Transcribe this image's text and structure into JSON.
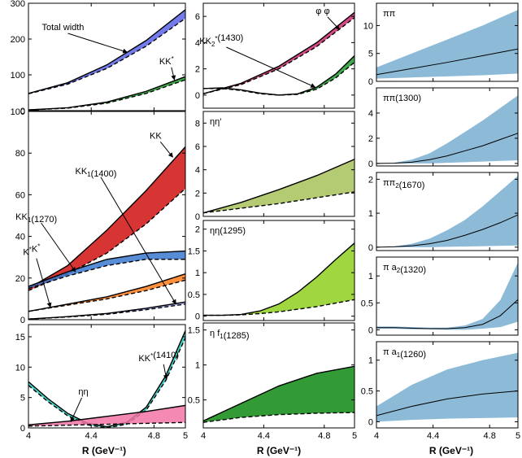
{
  "x_axis": {
    "label": "R (GeV⁻¹)",
    "ticks": [
      4,
      4.4,
      4.8,
      5
    ],
    "tick_labels": [
      "4",
      "4.4",
      "4.8",
      "5"
    ],
    "range": [
      4,
      5
    ]
  },
  "chart_data": [
    {
      "type": "area",
      "column": 1,
      "row": 1,
      "xlim": [
        4,
        5
      ],
      "ylim": [
        0,
        300
      ],
      "yticks": [
        0,
        100,
        200,
        300
      ],
      "series": [
        {
          "name": "Total width",
          "color": "#5a63e6",
          "fill_from": "lower",
          "x": [
            4,
            4.25,
            4.5,
            4.75,
            5
          ],
          "upper": [
            48,
            78,
            128,
            196,
            282
          ],
          "lower": [
            47,
            74,
            118,
            180,
            258
          ]
        },
        {
          "name": "KK*",
          "color": "#1f9a2c",
          "fill_from": "lower",
          "x": [
            4,
            4.25,
            4.5,
            4.75,
            5
          ],
          "upper": [
            2,
            8,
            24,
            54,
            95
          ],
          "lower": [
            2,
            7,
            21,
            48,
            86
          ]
        }
      ],
      "annotations": [
        {
          "text": "Total width",
          "series": 0,
          "label_at": [
            4.22,
            225
          ],
          "arrow_to": [
            4.63,
            163
          ]
        },
        {
          "text": "KK*",
          "series": 1,
          "label_at": [
            4.88,
            130
          ],
          "arrow_to": [
            4.93,
            86
          ]
        }
      ]
    },
    {
      "type": "area",
      "column": 1,
      "row": 2,
      "xlim": [
        4,
        5
      ],
      "ylim": [
        0,
        100
      ],
      "yticks": [
        0,
        20,
        40,
        60,
        80,
        100
      ],
      "series": [
        {
          "name": "KK",
          "color": "#d01010",
          "fill_from": "lower",
          "x": [
            4,
            4.25,
            4.5,
            4.75,
            5
          ],
          "upper": [
            15,
            26,
            43,
            62,
            83
          ],
          "lower": [
            14,
            22,
            32,
            46,
            63
          ]
        },
        {
          "name": "KK1(1270)",
          "color": "#3a78d0",
          "fill_from": "lower",
          "x": [
            4,
            4.25,
            4.5,
            4.75,
            5
          ],
          "upper": [
            16,
            23,
            29,
            32,
            33
          ],
          "lower": [
            15,
            21,
            26,
            29,
            29
          ]
        },
        {
          "name": "K*K*",
          "color": "#ff7d1a",
          "fill_from": "lower",
          "x": [
            4,
            4.25,
            4.5,
            4.75,
            5
          ],
          "upper": [
            4,
            7.5,
            11,
            16,
            22
          ],
          "lower": [
            4,
            7,
            10,
            14,
            19
          ]
        },
        {
          "name": "KK1(1400)",
          "color": "#9aa5ee",
          "fill_from": "lower",
          "x": [
            4,
            4.25,
            4.5,
            4.75,
            5
          ],
          "upper": [
            0.3,
            1.5,
            3,
            5.5,
            8.5
          ],
          "lower": [
            0.3,
            1.3,
            2.6,
            4.8,
            7.5
          ]
        }
      ],
      "annotations": [
        {
          "text": "KK",
          "series": 0,
          "label_at": [
            4.81,
            87
          ],
          "arrow_to": [
            4.92,
            78
          ]
        },
        {
          "text": "KK1(1400)",
          "series": 3,
          "label_at": [
            4.43,
            70
          ],
          "arrow_to": [
            4.94,
            7.5
          ]
        },
        {
          "text": "KK1(1270)",
          "series": 1,
          "label_at": [
            4.05,
            48
          ],
          "arrow_to": [
            4.3,
            23
          ]
        },
        {
          "text": "K*K*",
          "series": 2,
          "label_at": [
            4.02,
            31
          ],
          "arrow_to": [
            4.14,
            6
          ]
        }
      ]
    },
    {
      "type": "area",
      "column": 1,
      "row": 3,
      "xlim": [
        4,
        5
      ],
      "ylim": [
        0,
        17
      ],
      "yticks": [
        0,
        5,
        10,
        15
      ],
      "series": [
        {
          "name": "KK*(1410)",
          "color": "#22c8bb",
          "fill_from": "lower",
          "x": [
            4,
            4.125,
            4.25,
            4.375,
            4.5,
            4.625,
            4.75,
            4.875,
            5
          ],
          "upper": [
            7.6,
            4.8,
            2.4,
            0.8,
            0.2,
            0.9,
            3.4,
            8.6,
            16.0
          ],
          "lower": [
            7.0,
            4.3,
            2.0,
            0.5,
            0.0,
            0.6,
            2.9,
            7.8,
            14.8
          ]
        },
        {
          "name": "ηη",
          "color": "#f276a6",
          "fill_from": "lower",
          "x": [
            4,
            4.25,
            4.5,
            4.75,
            5
          ],
          "upper": [
            0.5,
            1.1,
            1.9,
            2.7,
            3.7
          ],
          "lower": [
            0.3,
            0.45,
            0.6,
            0.75,
            0.9
          ]
        }
      ],
      "annotations": [
        {
          "text": "KK*(1410)",
          "series": 0,
          "label_at": [
            4.83,
            11
          ],
          "arrow_to": [
            4.88,
            8.0
          ]
        },
        {
          "text": "ηη",
          "series": 1,
          "label_at": [
            4.35,
            5.5
          ],
          "arrow_to": [
            4.27,
            1.0
          ]
        }
      ]
    },
    {
      "type": "area",
      "column": 2,
      "row": 1,
      "xlim": [
        4,
        5
      ],
      "ylim": [
        -1,
        7
      ],
      "yticks": [
        0,
        2,
        4,
        6
      ],
      "series": [
        {
          "name": "φ φ",
          "color": "#cc2a6e",
          "fill_from": "lower",
          "x": [
            4,
            4.25,
            4.5,
            4.75,
            5
          ],
          "upper": [
            0.1,
            0.9,
            2.2,
            4.0,
            6.3
          ],
          "lower": [
            0.1,
            0.8,
            2.0,
            3.7,
            5.9
          ]
        },
        {
          "name": "KK2*(1430)",
          "color": "#1f9a2c",
          "fill_from": "lower",
          "x": [
            4,
            4.125,
            4.25,
            4.375,
            4.5,
            4.625,
            4.75,
            4.875,
            5
          ],
          "upper": [
            0.5,
            0.55,
            0.4,
            0.15,
            0.0,
            0.1,
            0.6,
            1.6,
            3.0
          ],
          "lower": [
            0.5,
            0.5,
            0.35,
            0.1,
            0.0,
            0.05,
            0.45,
            1.3,
            2.5
          ]
        }
      ],
      "annotations": [
        {
          "text": "φ φ",
          "series": 0,
          "label_at": [
            4.79,
            6.2
          ],
          "arrow_to": [
            4.9,
            5.0
          ]
        },
        {
          "text": "KK2*(1430)",
          "series": 1,
          "label_at": [
            4.12,
            3.9
          ],
          "arrow_to": [
            4.74,
            0.6
          ]
        }
      ]
    },
    {
      "type": "area",
      "column": 2,
      "row": 2,
      "xlim": [
        4,
        5
      ],
      "ylim": [
        0,
        9
      ],
      "yticks": [
        0,
        2,
        4,
        6,
        8
      ],
      "series": [
        {
          "name": "ηη′",
          "color": "#a8c25a",
          "fill_from": "lower",
          "x": [
            4,
            4.25,
            4.5,
            4.75,
            5
          ],
          "upper": [
            0.3,
            1.2,
            2.3,
            3.5,
            4.9
          ],
          "lower": [
            0.3,
            0.7,
            1.1,
            1.6,
            2.1
          ]
        }
      ]
    },
    {
      "type": "area",
      "column": 2,
      "row": 3,
      "xlim": [
        4,
        5
      ],
      "ylim": [
        -0.1,
        2.2
      ],
      "yticks": [
        0,
        0.5,
        1,
        1.5,
        2
      ],
      "series": [
        {
          "name": "ηη(1295)",
          "color": "#8fd01f",
          "fill_from": "lower",
          "x": [
            4,
            4.125,
            4.25,
            4.375,
            4.5,
            4.625,
            4.75,
            4.875,
            5
          ],
          "upper": [
            0.02,
            0.02,
            0.04,
            0.12,
            0.28,
            0.55,
            0.9,
            1.3,
            1.68
          ],
          "lower": [
            0.02,
            0.02,
            0.03,
            0.06,
            0.1,
            0.16,
            0.22,
            0.3,
            0.38
          ]
        }
      ]
    },
    {
      "type": "area",
      "column": 2,
      "row": 4,
      "xlim": [
        4,
        5
      ],
      "ylim": [
        0.1,
        1.6
      ],
      "yticks": [
        0.5,
        1,
        1.5
      ],
      "series": [
        {
          "name": "η f1(1285)",
          "color": "#0f8a12",
          "fill_from": "lower",
          "x": [
            4,
            4.25,
            4.5,
            4.75,
            5
          ],
          "upper": [
            0.2,
            0.45,
            0.7,
            0.88,
            0.98
          ],
          "lower": [
            0.18,
            0.25,
            0.29,
            0.31,
            0.32
          ]
        }
      ]
    },
    {
      "type": "area",
      "column": 3,
      "row": 1,
      "xlim": [
        4,
        5
      ],
      "ylim": [
        0,
        14
      ],
      "yticks": [
        0,
        5,
        10
      ],
      "series": [
        {
          "name": "ππ",
          "color": "#7fb3d3",
          "central_line": true,
          "x": [
            4,
            4.25,
            4.5,
            4.75,
            5
          ],
          "upper": [
            2.5,
            5,
            7.5,
            10,
            12.8
          ],
          "lower": [
            0.5,
            0.7,
            0.9,
            1.1,
            1.4
          ],
          "central": [
            1.2,
            2.3,
            3.4,
            4.6,
            5.8
          ]
        }
      ]
    },
    {
      "type": "area",
      "column": 3,
      "row": 2,
      "xlim": [
        4,
        5
      ],
      "ylim": [
        -0.2,
        6
      ],
      "yticks": [
        0,
        2,
        4
      ],
      "series": [
        {
          "name": "ππ(1300)",
          "color": "#7fb3d3",
          "central_line": true,
          "x": [
            4,
            4.125,
            4.25,
            4.375,
            4.5,
            4.625,
            4.75,
            4.875,
            5
          ],
          "upper": [
            0,
            0.05,
            0.3,
            0.8,
            1.6,
            2.5,
            3.4,
            4.4,
            5.4
          ],
          "lower": [
            0,
            0,
            0,
            0,
            0.05,
            0.1,
            0.15,
            0.2,
            0.25
          ],
          "central": [
            0,
            0.02,
            0.1,
            0.3,
            0.6,
            1.0,
            1.4,
            1.9,
            2.4
          ]
        }
      ]
    },
    {
      "type": "area",
      "column": 3,
      "row": 3,
      "xlim": [
        4,
        5
      ],
      "ylim": [
        -0.1,
        2.2
      ],
      "yticks": [
        0,
        1,
        2
      ],
      "series": [
        {
          "name": "ππ2(1670)",
          "color": "#7fb3d3",
          "central_line": true,
          "x": [
            4,
            4.125,
            4.25,
            4.375,
            4.5,
            4.625,
            4.75,
            4.875,
            5
          ],
          "upper": [
            0,
            0.02,
            0.1,
            0.25,
            0.5,
            0.8,
            1.2,
            1.65,
            2.1
          ],
          "lower": [
            0,
            0,
            0,
            0,
            0.01,
            0.02,
            0.03,
            0.04,
            0.05
          ],
          "central": [
            0,
            0.01,
            0.04,
            0.1,
            0.2,
            0.35,
            0.52,
            0.72,
            0.95
          ]
        }
      ]
    },
    {
      "type": "area",
      "column": 3,
      "row": 4,
      "xlim": [
        4,
        5
      ],
      "ylim": [
        -0.1,
        1.35
      ],
      "yticks": [
        0,
        0.5,
        1
      ],
      "series": [
        {
          "name": "π a2(1320)",
          "color": "#7fb3d3",
          "central_line": true,
          "x": [
            4,
            4.125,
            4.25,
            4.375,
            4.5,
            4.625,
            4.75,
            4.875,
            5
          ],
          "upper": [
            0.06,
            0.06,
            0.05,
            0.04,
            0.04,
            0.08,
            0.2,
            0.55,
            1.25
          ],
          "lower": [
            0.02,
            0.02,
            0.01,
            0.01,
            0.0,
            0.0,
            0.02,
            0.05,
            0.15
          ],
          "central": [
            0.04,
            0.04,
            0.03,
            0.02,
            0.02,
            0.04,
            0.1,
            0.26,
            0.56
          ]
        }
      ]
    },
    {
      "type": "area",
      "column": 3,
      "row": 5,
      "xlim": [
        4,
        5
      ],
      "ylim": [
        -0.1,
        1.3
      ],
      "yticks": [
        0,
        0.5,
        1
      ],
      "series": [
        {
          "name": "π a1(1260)",
          "color": "#7fb3d3",
          "central_line": true,
          "x": [
            4,
            4.25,
            4.5,
            4.75,
            5
          ],
          "upper": [
            0.25,
            0.6,
            0.85,
            1.0,
            1.12
          ],
          "lower": [
            0.0,
            0.03,
            0.05,
            0.06,
            0.07
          ],
          "central": [
            0.1,
            0.25,
            0.37,
            0.45,
            0.5
          ]
        }
      ]
    }
  ]
}
